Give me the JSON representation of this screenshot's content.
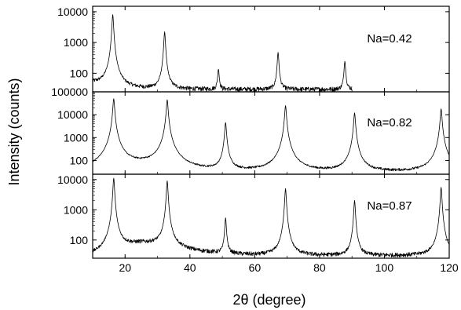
{
  "chart_data": {
    "type": "line",
    "xlabel": "2θ (degree)",
    "ylabel": "Intensity (counts)",
    "x_range": [
      10,
      120
    ],
    "x_ticks": [
      20,
      40,
      60,
      80,
      100,
      120
    ],
    "y_scale": "log",
    "grid": false,
    "panels": [
      {
        "annotation": "Na=0.42",
        "y_range": [
          25,
          15000
        ],
        "y_ticks": [
          100,
          1000,
          10000
        ],
        "y_tick_labels": [
          "100",
          "1000",
          "10000"
        ],
        "x_max_data": 90,
        "background": [
          [
            10,
            48
          ],
          [
            15,
            40
          ],
          [
            20,
            33
          ],
          [
            25,
            31
          ],
          [
            30,
            30
          ],
          [
            40,
            30
          ],
          [
            60,
            30
          ],
          [
            80,
            30
          ],
          [
            90,
            30
          ]
        ],
        "peaks": [
          {
            "x": 16.2,
            "y": 8000
          },
          {
            "x": 32.2,
            "y": 2200
          },
          {
            "x": 48.8,
            "y": 110
          },
          {
            "x": 67.2,
            "y": 450
          },
          {
            "x": 87.8,
            "y": 220
          }
        ]
      },
      {
        "annotation": "Na=0.82",
        "y_range": [
          25,
          100000
        ],
        "y_ticks": [
          100,
          1000,
          10000,
          100000
        ],
        "y_tick_labels": [
          "100",
          "1000",
          "10000",
          "100000"
        ],
        "x_max_data": 120,
        "background": [
          [
            10,
            30
          ],
          [
            14,
            32
          ],
          [
            18,
            45
          ],
          [
            22,
            58
          ],
          [
            26,
            62
          ],
          [
            30,
            58
          ],
          [
            34,
            45
          ],
          [
            38,
            35
          ],
          [
            44,
            32
          ],
          [
            60,
            30
          ],
          [
            80,
            30
          ],
          [
            100,
            30
          ],
          [
            120,
            30
          ]
        ],
        "peaks": [
          {
            "x": 16.5,
            "y": 50000
          },
          {
            "x": 33.0,
            "y": 45000
          },
          {
            "x": 51.0,
            "y": 4500
          },
          {
            "x": 69.5,
            "y": 25000
          },
          {
            "x": 90.8,
            "y": 12000
          },
          {
            "x": 117.5,
            "y": 18000
          }
        ]
      },
      {
        "annotation": "Na=0.87",
        "y_range": [
          25,
          15000
        ],
        "y_ticks": [
          100,
          1000,
          10000
        ],
        "y_tick_labels": [
          "100",
          "1000",
          "10000"
        ],
        "x_max_data": 120,
        "background": [
          [
            10,
            30
          ],
          [
            13,
            35
          ],
          [
            17,
            50
          ],
          [
            21,
            68
          ],
          [
            25,
            78
          ],
          [
            29,
            74
          ],
          [
            33,
            62
          ],
          [
            37,
            50
          ],
          [
            42,
            42
          ],
          [
            50,
            35
          ],
          [
            60,
            31
          ],
          [
            80,
            30
          ],
          [
            100,
            30
          ],
          [
            120,
            30
          ]
        ],
        "peaks": [
          {
            "x": 16.5,
            "y": 11000
          },
          {
            "x": 33.0,
            "y": 9000
          },
          {
            "x": 51.0,
            "y": 500
          },
          {
            "x": 69.5,
            "y": 5000
          },
          {
            "x": 90.8,
            "y": 2000
          },
          {
            "x": 117.5,
            "y": 5500
          }
        ]
      }
    ]
  }
}
